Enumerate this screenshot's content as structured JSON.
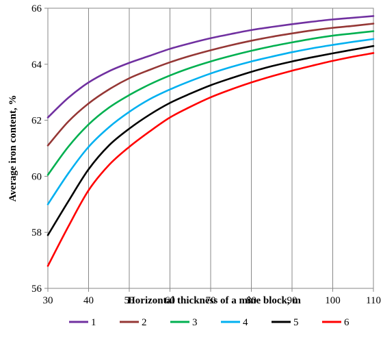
{
  "chart_data": {
    "type": "line",
    "xlabel": "Horizontal  thickness of a mine block, m",
    "ylabel": "Average iron content, %",
    "xlim": [
      30,
      110
    ],
    "ylim": [
      56,
      66
    ],
    "xticks": [
      30,
      40,
      50,
      60,
      70,
      80,
      90,
      100,
      110
    ],
    "yticks": [
      56,
      58,
      60,
      62,
      64,
      66
    ],
    "grid": "vertical",
    "legend_position": "bottom",
    "x": [
      30,
      35,
      40,
      45,
      50,
      55,
      60,
      65,
      70,
      75,
      80,
      85,
      90,
      95,
      100,
      105,
      110
    ],
    "series": [
      {
        "name": "1",
        "color": "#7030a0",
        "values": [
          62.1,
          62.8,
          63.35,
          63.75,
          64.05,
          64.3,
          64.55,
          64.75,
          64.93,
          65.08,
          65.22,
          65.33,
          65.43,
          65.52,
          65.6,
          65.66,
          65.72
        ]
      },
      {
        "name": "2",
        "color": "#953735",
        "values": [
          61.1,
          61.95,
          62.6,
          63.1,
          63.5,
          63.8,
          64.07,
          64.3,
          64.5,
          64.68,
          64.84,
          64.98,
          65.1,
          65.21,
          65.3,
          65.37,
          65.45
        ]
      },
      {
        "name": "3",
        "color": "#00b050",
        "values": [
          60.05,
          61.05,
          61.85,
          62.45,
          62.9,
          63.28,
          63.6,
          63.87,
          64.1,
          64.3,
          64.48,
          64.64,
          64.78,
          64.91,
          65.02,
          65.1,
          65.18
        ]
      },
      {
        "name": "4",
        "color": "#00b0f0",
        "values": [
          59.0,
          60.1,
          61.05,
          61.75,
          62.3,
          62.75,
          63.1,
          63.4,
          63.67,
          63.9,
          64.1,
          64.27,
          64.43,
          64.57,
          64.69,
          64.8,
          64.9
        ]
      },
      {
        "name": "5",
        "color": "#000000",
        "values": [
          57.9,
          59.1,
          60.25,
          61.1,
          61.7,
          62.2,
          62.62,
          62.95,
          63.25,
          63.5,
          63.73,
          63.93,
          64.1,
          64.25,
          64.39,
          64.52,
          64.65
        ]
      },
      {
        "name": "6",
        "color": "#ff0000",
        "values": [
          56.8,
          58.2,
          59.5,
          60.4,
          61.05,
          61.6,
          62.1,
          62.48,
          62.82,
          63.1,
          63.35,
          63.57,
          63.77,
          63.95,
          64.12,
          64.27,
          64.4
        ]
      }
    ]
  }
}
